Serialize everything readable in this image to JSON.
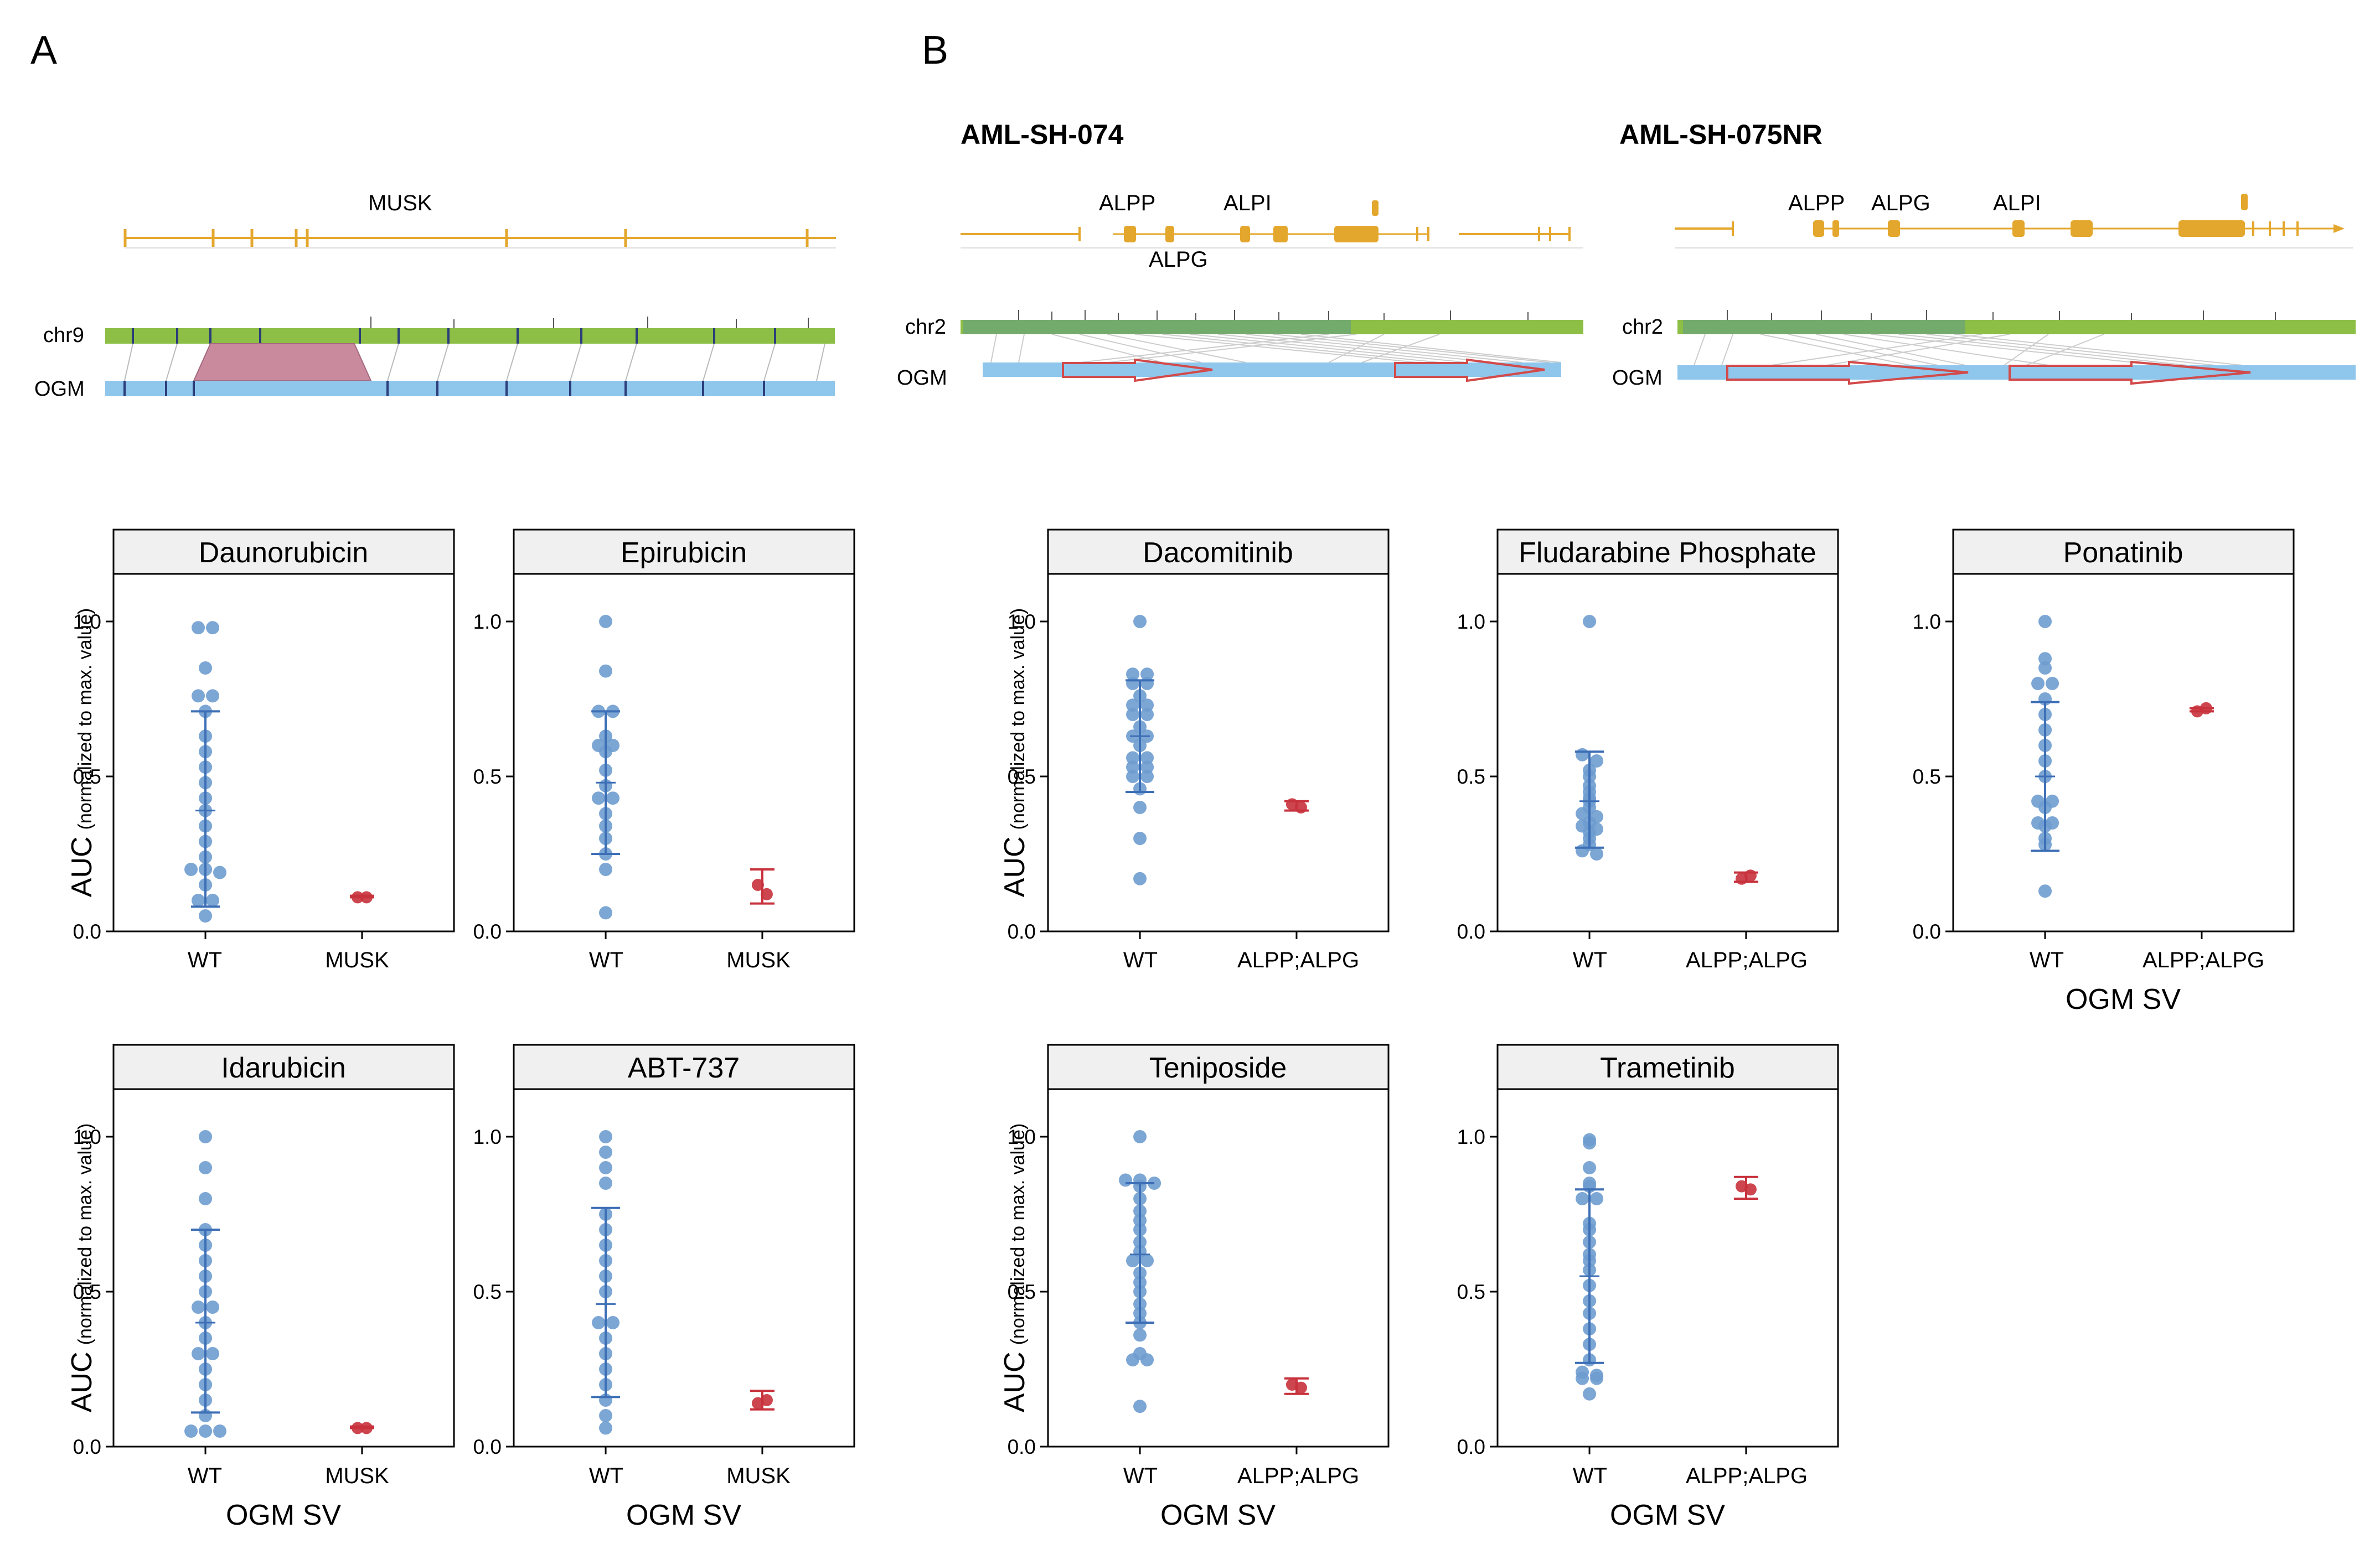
{
  "panels": {
    "a_label": "A",
    "b_label": "B"
  },
  "genome": {
    "musk_gene": "MUSK",
    "track_chr9": "chr9",
    "track_chr2": "chr2",
    "track_ogm": "OGM",
    "sample_1": "AML-SH-074",
    "sample_2": "AML-SH-075NR",
    "genes_1": [
      "ALPP",
      "ALPI",
      "ALPG"
    ],
    "genes_2": [
      "ALPP",
      "ALPG",
      "ALPI"
    ]
  },
  "axis": {
    "y_main": "AUC",
    "y_sub": "(normalized to max. value)",
    "x_title": "OGM SV",
    "y_ticks": [
      "0.0",
      "0.5",
      "1.0"
    ]
  },
  "colors": {
    "wt": "#6e9ccf",
    "mut": "#c8323c",
    "gene_track": "#e4a72d",
    "chr_track": "#8dbe45",
    "ogm_track": "#8fc6ec",
    "strip_bg": "#f0f0f0",
    "deletion": "#c98a9e",
    "dup_outline": "#d24a4a"
  },
  "chart_data": [
    {
      "type": "scatter",
      "title": "Daunorubicin",
      "categories": [
        "WT",
        "MUSK"
      ],
      "ylim": [
        0,
        1.1
      ],
      "wt": [
        0.98,
        0.98,
        0.85,
        0.76,
        0.76,
        0.71,
        0.63,
        0.58,
        0.53,
        0.48,
        0.43,
        0.39,
        0.34,
        0.29,
        0.24,
        0.2,
        0.2,
        0.19,
        0.15,
        0.1,
        0.1,
        0.05
      ],
      "wt_mean": 0.39,
      "wt_sd": [
        0.08,
        0.71
      ],
      "mut": [
        0.11,
        0.11
      ],
      "mut_range": [
        0.11,
        0.115
      ]
    },
    {
      "type": "scatter",
      "title": "Epirubicin",
      "categories": [
        "WT",
        "MUSK"
      ],
      "ylim": [
        0,
        1.1
      ],
      "wt": [
        1.0,
        0.84,
        0.71,
        0.71,
        0.63,
        0.6,
        0.6,
        0.58,
        0.52,
        0.47,
        0.43,
        0.43,
        0.38,
        0.34,
        0.3,
        0.25,
        0.2,
        0.06
      ],
      "wt_mean": 0.48,
      "wt_sd": [
        0.25,
        0.71
      ],
      "mut": [
        0.15,
        0.12
      ],
      "mut_range": [
        0.09,
        0.2
      ]
    },
    {
      "type": "scatter",
      "title": "Idarubicin",
      "categories": [
        "WT",
        "MUSK"
      ],
      "ylim": [
        0,
        1.1
      ],
      "wt": [
        1.0,
        0.9,
        0.8,
        0.7,
        0.65,
        0.6,
        0.55,
        0.5,
        0.45,
        0.45,
        0.4,
        0.35,
        0.3,
        0.3,
        0.25,
        0.2,
        0.15,
        0.1,
        0.05,
        0.05,
        0.05
      ],
      "wt_mean": 0.4,
      "wt_sd": [
        0.11,
        0.7
      ],
      "mut": [
        0.06,
        0.06
      ],
      "mut_range": [
        0.06,
        0.065
      ]
    },
    {
      "type": "scatter",
      "title": "ABT-737",
      "categories": [
        "WT",
        "MUSK"
      ],
      "ylim": [
        0,
        1.1
      ],
      "wt": [
        1.0,
        0.95,
        0.9,
        0.85,
        0.75,
        0.7,
        0.65,
        0.6,
        0.55,
        0.5,
        0.4,
        0.4,
        0.35,
        0.3,
        0.25,
        0.2,
        0.15,
        0.1,
        0.06
      ],
      "wt_mean": 0.46,
      "wt_sd": [
        0.16,
        0.77
      ],
      "mut": [
        0.14,
        0.15
      ],
      "mut_range": [
        0.12,
        0.18
      ]
    },
    {
      "type": "scatter",
      "title": "Dacomitinib",
      "categories": [
        "WT",
        "ALPP;ALPG"
      ],
      "ylim": [
        0,
        1.1
      ],
      "wt": [
        1.0,
        0.83,
        0.83,
        0.8,
        0.8,
        0.76,
        0.73,
        0.73,
        0.7,
        0.7,
        0.66,
        0.63,
        0.63,
        0.6,
        0.56,
        0.56,
        0.53,
        0.53,
        0.5,
        0.5,
        0.46,
        0.4,
        0.3,
        0.17
      ],
      "wt_mean": 0.63,
      "wt_sd": [
        0.45,
        0.81
      ],
      "mut": [
        0.41,
        0.4
      ],
      "mut_range": [
        0.39,
        0.42
      ]
    },
    {
      "type": "scatter",
      "title": "Fludarabine Phosphate",
      "categories": [
        "WT",
        "ALPP;ALPG"
      ],
      "ylim": [
        0,
        1.1
      ],
      "wt": [
        1.0,
        0.57,
        0.55,
        0.52,
        0.5,
        0.47,
        0.45,
        0.43,
        0.42,
        0.4,
        0.38,
        0.37,
        0.35,
        0.34,
        0.33,
        0.32,
        0.3,
        0.28,
        0.26,
        0.25
      ],
      "wt_mean": 0.42,
      "wt_sd": [
        0.27,
        0.58
      ],
      "mut": [
        0.17,
        0.18
      ],
      "mut_range": [
        0.16,
        0.19
      ]
    },
    {
      "type": "scatter",
      "title": "Ponatinib",
      "categories": [
        "WT",
        "ALPP;ALPG"
      ],
      "ylim": [
        0,
        1.1
      ],
      "wt": [
        1.0,
        0.88,
        0.85,
        0.8,
        0.8,
        0.75,
        0.7,
        0.65,
        0.6,
        0.55,
        0.5,
        0.42,
        0.42,
        0.4,
        0.35,
        0.35,
        0.34,
        0.3,
        0.28,
        0.13
      ],
      "wt_mean": 0.5,
      "wt_sd": [
        0.26,
        0.74
      ],
      "mut": [
        0.71,
        0.72
      ],
      "mut_range": [
        0.71,
        0.72
      ]
    },
    {
      "type": "scatter",
      "title": "Teniposide",
      "categories": [
        "WT",
        "ALPP;ALPG"
      ],
      "ylim": [
        0,
        1.1
      ],
      "wt": [
        1.0,
        0.86,
        0.86,
        0.85,
        0.84,
        0.8,
        0.76,
        0.73,
        0.7,
        0.66,
        0.63,
        0.6,
        0.6,
        0.56,
        0.53,
        0.5,
        0.46,
        0.43,
        0.4,
        0.36,
        0.3,
        0.28,
        0.28,
        0.13
      ],
      "wt_mean": 0.62,
      "wt_sd": [
        0.4,
        0.85
      ],
      "mut": [
        0.2,
        0.19
      ],
      "mut_range": [
        0.17,
        0.22
      ]
    },
    {
      "type": "scatter",
      "title": "Trametinib",
      "categories": [
        "WT",
        "ALPP;ALPG"
      ],
      "ylim": [
        0,
        1.1
      ],
      "wt": [
        0.99,
        0.98,
        0.9,
        0.85,
        0.84,
        0.8,
        0.8,
        0.72,
        0.7,
        0.66,
        0.62,
        0.6,
        0.57,
        0.52,
        0.47,
        0.43,
        0.38,
        0.33,
        0.28,
        0.24,
        0.23,
        0.22,
        0.22,
        0.17
      ],
      "wt_mean": 0.55,
      "wt_sd": [
        0.27,
        0.83
      ],
      "mut": [
        0.84,
        0.83
      ],
      "mut_range": [
        0.8,
        0.87
      ]
    }
  ]
}
